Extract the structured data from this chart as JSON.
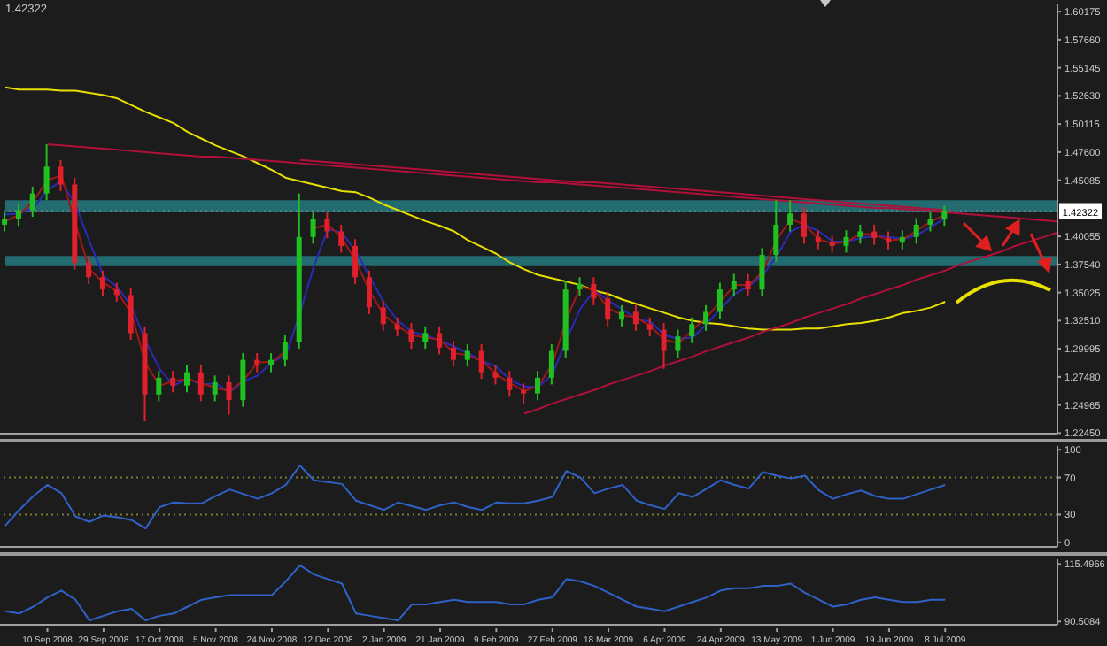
{
  "chart_data": [
    {
      "type": "candlestick",
      "annotations": [
        "1.42322"
      ],
      "categories": [
        null,
        null,
        null,
        null,
        null,
        null,
        null,
        null,
        null,
        null,
        null,
        null,
        null,
        null,
        null,
        null,
        null,
        null,
        null,
        null,
        null,
        null,
        null,
        null,
        null,
        null,
        null,
        null,
        null,
        null,
        null,
        null,
        null,
        null,
        null,
        null,
        null,
        null,
        null,
        null,
        null,
        null,
        null,
        null,
        null,
        null,
        null,
        null,
        null,
        null,
        null,
        null,
        null,
        null,
        null,
        null,
        null,
        null,
        null,
        null,
        null,
        null,
        null,
        null,
        null,
        null,
        null,
        null,
        null,
        null,
        null,
        null,
        null,
        null,
        null,
        null
      ],
      "series": [
        {
          "type": "line",
          "color": "#e8e000",
          "values": [
            1.534,
            1.532,
            1.532,
            1.532,
            1.531,
            1.531,
            1.529,
            1.527,
            1.524,
            1.518,
            1.512,
            1.507,
            1.502,
            1.494,
            1.488,
            1.482,
            1.477,
            1.472,
            1.466,
            1.46,
            1.453,
            1.45,
            1.447,
            1.444,
            1.441,
            1.44,
            1.435,
            1.429,
            1.424,
            1.419,
            1.414,
            1.41,
            1.405,
            1.397,
            1.391,
            1.385,
            1.377,
            1.371,
            1.366,
            1.363,
            1.36,
            1.357,
            1.352,
            1.349,
            1.344,
            1.34,
            1.336,
            1.332,
            1.328,
            1.325,
            1.323,
            1.322,
            1.32,
            1.318,
            1.317,
            1.317,
            1.317,
            1.318,
            1.318,
            1.32,
            1.322,
            1.323,
            1.325,
            1.328,
            1.332,
            1.334,
            1.337,
            1.342,
            null,
            null,
            null,
            null,
            null,
            null,
            null,
            null
          ]
        },
        {
          "type": "line",
          "color": "#2a2ab8",
          "values": [
            1.42,
            1.421,
            1.426,
            1.442,
            1.45,
            1.429,
            1.396,
            1.365,
            1.355,
            1.338,
            1.307,
            1.282,
            1.267,
            1.273,
            1.268,
            1.269,
            1.261,
            1.271,
            1.276,
            1.288,
            1.294,
            1.332,
            1.374,
            1.407,
            1.404,
            1.387,
            1.364,
            1.341,
            1.325,
            1.315,
            1.312,
            1.307,
            1.302,
            1.296,
            1.289,
            1.284,
            1.272,
            1.266,
            1.266,
            1.277,
            1.308,
            1.336,
            1.352,
            1.343,
            1.335,
            1.327,
            1.324,
            1.312,
            1.309,
            1.31,
            1.322,
            1.336,
            1.349,
            1.356,
            1.366,
            1.383,
            1.405,
            1.411,
            1.405,
            1.396,
            1.396,
            1.399,
            1.401,
            1.4,
            1.398,
            1.402,
            1.409,
            1.417,
            null,
            null,
            null,
            null,
            null,
            null,
            null,
            null
          ]
        },
        {
          "type": "line",
          "color": "#a01818",
          "values": [
            1.414,
            1.42,
            1.432,
            1.451,
            1.455,
            1.412,
            1.371,
            1.359,
            1.351,
            1.331,
            1.287,
            1.267,
            1.271,
            1.273,
            1.269,
            1.265,
            1.262,
            1.272,
            1.288,
            1.288,
            1.298,
            null,
            1.408,
            1.411,
            1.399,
            1.378,
            1.351,
            1.33,
            1.32,
            1.312,
            1.31,
            1.308,
            1.296,
            1.294,
            1.289,
            1.277,
            1.269,
            1.262,
            1.267,
            1.286,
            1.326,
            1.356,
            1.352,
            1.336,
            1.33,
            1.328,
            1.32,
            1.308,
            1.305,
            1.317,
            1.328,
            1.343,
            1.357,
            1.357,
            1.369,
            1.398,
            1.416,
            1.411,
            1.398,
            1.394,
            1.396,
            1.403,
            1.402,
            1.397,
            1.398,
            1.406,
            1.414,
            1.42,
            null,
            null,
            null,
            null,
            null,
            null,
            null,
            null
          ]
        },
        {
          "type": "line",
          "color": "#b0103a",
          "values": [
            null,
            null,
            null,
            1.483,
            1.482,
            1.481,
            1.48,
            1.479,
            1.478,
            1.477,
            1.476,
            1.475,
            1.474,
            1.473,
            1.472,
            1.472,
            1.471,
            1.47,
            1.469,
            1.468,
            1.467,
            1.466,
            1.465,
            1.464,
            1.463,
            1.462,
            1.461,
            1.46,
            1.459,
            1.458,
            1.457,
            1.456,
            1.455,
            1.454,
            1.453,
            1.452,
            1.451,
            1.45,
            1.449,
            1.449,
            1.448,
            1.447,
            1.446,
            1.445,
            1.444,
            1.443,
            1.442,
            1.441,
            1.44,
            1.439,
            1.438,
            1.437,
            1.436,
            1.435,
            1.434,
            1.433,
            1.432,
            1.431,
            1.43,
            1.429,
            1.428,
            1.427,
            1.426,
            1.426,
            1.425,
            1.424,
            1.423,
            1.422,
            1.421,
            1.42,
            1.419,
            1.418,
            1.417,
            1.416,
            1.415,
            1.414
          ]
        },
        {
          "type": "line",
          "color": "#b0103a",
          "values": [
            null,
            null,
            null,
            null,
            null,
            null,
            null,
            null,
            null,
            null,
            null,
            null,
            null,
            null,
            null,
            null,
            null,
            null,
            null,
            null,
            null,
            1.469,
            1.468,
            1.467,
            1.466,
            1.465,
            1.464,
            1.463,
            1.462,
            1.461,
            1.46,
            1.459,
            1.458,
            1.457,
            1.456,
            1.455,
            1.454,
            1.453,
            1.452,
            1.451,
            1.45,
            1.449,
            1.449,
            1.448,
            1.447,
            1.446,
            1.445,
            1.444,
            1.443,
            1.442,
            1.441,
            1.44,
            1.439,
            1.438,
            1.437,
            1.436,
            1.435,
            1.434,
            1.433,
            1.432,
            1.431,
            1.43,
            1.429,
            1.428,
            1.427,
            1.426,
            1.425,
            1.424,
            null,
            null,
            null,
            null,
            null,
            null,
            null,
            null
          ]
        },
        {
          "type": "line",
          "color": "#b0103a",
          "values": [
            null,
            null,
            null,
            null,
            null,
            null,
            null,
            null,
            null,
            null,
            null,
            null,
            null,
            null,
            null,
            null,
            null,
            null,
            null,
            null,
            null,
            null,
            null,
            null,
            null,
            null,
            null,
            null,
            null,
            null,
            null,
            null,
            null,
            null,
            null,
            null,
            null,
            1.242,
            1.246,
            1.251,
            1.255,
            1.259,
            1.263,
            1.268,
            1.272,
            1.276,
            1.28,
            1.285,
            1.289,
            1.293,
            1.298,
            1.302,
            1.306,
            1.31,
            1.315,
            1.319,
            1.323,
            1.328,
            1.332,
            1.336,
            1.34,
            1.345,
            1.349,
            1.353,
            1.357,
            1.362,
            1.366,
            1.37,
            1.375,
            1.379,
            1.383,
            1.387,
            1.392,
            1.396,
            1.4,
            1.404
          ]
        },
        {
          "ohlc": [
            [
              1.411,
              1.422,
              1.405,
              1.416
            ],
            [
              1.416,
              1.43,
              1.41,
              1.424
            ],
            [
              1.424,
              1.445,
              1.418,
              1.439
            ],
            [
              1.439,
              1.483,
              1.433,
              1.463
            ],
            [
              1.463,
              1.469,
              1.441,
              1.447
            ],
            [
              1.447,
              1.453,
              1.371,
              1.377
            ],
            [
              1.377,
              1.383,
              1.358,
              1.364
            ],
            [
              1.364,
              1.37,
              1.347,
              1.353
            ],
            [
              1.353,
              1.359,
              1.342,
              1.348
            ],
            [
              1.348,
              1.354,
              1.308,
              1.314
            ],
            [
              1.314,
              1.32,
              1.235,
              1.259
            ],
            [
              1.259,
              1.28,
              1.253,
              1.274
            ],
            [
              1.274,
              1.28,
              1.261,
              1.267
            ],
            [
              1.267,
              1.285,
              1.261,
              1.279
            ],
            [
              1.279,
              1.285,
              1.253,
              1.259
            ],
            [
              1.259,
              1.276,
              1.253,
              1.27
            ],
            [
              1.27,
              1.276,
              1.241,
              1.254
            ],
            [
              1.254,
              1.296,
              1.248,
              1.29
            ],
            [
              1.29,
              1.296,
              1.279,
              1.285
            ],
            [
              1.285,
              1.296,
              1.279,
              1.29
            ],
            [
              1.29,
              1.312,
              1.284,
              1.306
            ],
            [
              1.306,
              1.439,
              1.3,
              1.4
            ],
            [
              1.4,
              1.422,
              1.394,
              1.416
            ],
            [
              1.416,
              1.422,
              1.399,
              1.405
            ],
            [
              1.405,
              1.411,
              1.386,
              1.392
            ],
            [
              1.392,
              1.398,
              1.358,
              1.364
            ],
            [
              1.364,
              1.37,
              1.331,
              1.337
            ],
            [
              1.337,
              1.343,
              1.316,
              1.322
            ],
            [
              1.322,
              1.328,
              1.311,
              1.317
            ],
            [
              1.317,
              1.323,
              1.3,
              1.306
            ],
            [
              1.306,
              1.32,
              1.3,
              1.314
            ],
            [
              1.314,
              1.32,
              1.295,
              1.301
            ],
            [
              1.301,
              1.307,
              1.284,
              1.29
            ],
            [
              1.29,
              1.304,
              1.284,
              1.298
            ],
            [
              1.298,
              1.304,
              1.273,
              1.279
            ],
            [
              1.279,
              1.285,
              1.268,
              1.274
            ],
            [
              1.274,
              1.28,
              1.257,
              1.263
            ],
            [
              1.263,
              1.269,
              1.251,
              1.26
            ],
            [
              1.26,
              1.28,
              1.254,
              1.274
            ],
            [
              1.274,
              1.304,
              1.268,
              1.298
            ],
            [
              1.298,
              1.361,
              1.292,
              1.353
            ],
            [
              1.353,
              1.364,
              1.347,
              1.358
            ],
            [
              1.358,
              1.364,
              1.339,
              1.345
            ],
            [
              1.345,
              1.351,
              1.32,
              1.326
            ],
            [
              1.326,
              1.339,
              1.32,
              1.333
            ],
            [
              1.333,
              1.339,
              1.316,
              1.322
            ],
            [
              1.322,
              1.328,
              1.311,
              1.317
            ],
            [
              1.317,
              1.323,
              1.282,
              1.298
            ],
            [
              1.298,
              1.317,
              1.292,
              1.311
            ],
            [
              1.311,
              1.328,
              1.305,
              1.322
            ],
            [
              1.322,
              1.339,
              1.316,
              1.333
            ],
            [
              1.333,
              1.359,
              1.327,
              1.353
            ],
            [
              1.353,
              1.367,
              1.347,
              1.361
            ],
            [
              1.361,
              1.367,
              1.347,
              1.353
            ],
            [
              1.353,
              1.39,
              1.347,
              1.384
            ],
            [
              1.384,
              1.433,
              1.378,
              1.411
            ],
            [
              1.411,
              1.433,
              1.405,
              1.421
            ],
            [
              1.421,
              1.427,
              1.394,
              1.4
            ],
            [
              1.4,
              1.406,
              1.389,
              1.395
            ],
            [
              1.395,
              1.401,
              1.386,
              1.392
            ],
            [
              1.392,
              1.406,
              1.386,
              1.4
            ],
            [
              1.4,
              1.411,
              1.394,
              1.405
            ],
            [
              1.405,
              1.411,
              1.393,
              1.399
            ],
            [
              1.399,
              1.405,
              1.389,
              1.395
            ],
            [
              1.395,
              1.406,
              1.389,
              1.4
            ],
            [
              1.4,
              1.417,
              1.394,
              1.411
            ],
            [
              1.411,
              1.422,
              1.405,
              1.416
            ],
            [
              1.416,
              1.428,
              1.41,
              1.424
            ],
            null,
            null,
            null,
            null,
            null,
            null,
            null,
            null
          ],
          "colors": [
            "#1fc01f",
            "#1fc01f",
            "#1fc01f",
            "#1fc01f",
            "#e0202a",
            "#e0202a",
            "#e0202a",
            "#e0202a",
            "#e0202a",
            "#e0202a",
            "#e0202a",
            "#1fc01f",
            "#e0202a",
            "#1fc01f",
            "#e0202a",
            "#1fc01f",
            "#e0202a",
            "#1fc01f",
            "#e0202a",
            "#1fc01f",
            "#1fc01f",
            "#1fc01f",
            "#1fc01f",
            "#e0202a",
            "#e0202a",
            "#e0202a",
            "#e0202a",
            "#e0202a",
            "#e0202a",
            "#e0202a",
            "#1fc01f",
            "#e0202a",
            "#e0202a",
            "#1fc01f",
            "#e0202a",
            "#e0202a",
            "#e0202a",
            "#e0202a",
            "#1fc01f",
            "#1fc01f",
            "#1fc01f",
            "#1fc01f",
            "#e0202a",
            "#e0202a",
            "#1fc01f",
            "#e0202a",
            "#e0202a",
            "#e0202a",
            "#1fc01f",
            "#1fc01f",
            "#1fc01f",
            "#1fc01f",
            "#1fc01f",
            "#e0202a",
            "#1fc01f",
            "#1fc01f",
            "#1fc01f",
            "#e0202a",
            "#e0202a",
            "#e0202a",
            "#1fc01f",
            "#1fc01f",
            "#e0202a",
            "#e0202a",
            "#1fc01f",
            "#1fc01f",
            "#1fc01f",
            "#1fc01f",
            null,
            null,
            null,
            null,
            null,
            null,
            null,
            null
          ]
        }
      ],
      "ylim": [
        1.224,
        1.609
      ],
      "yticks": [
        {
          "value": 1.2245,
          "label": "1.22450"
        },
        1.24965,
        {
          "value": 1.2748,
          "label": "1.27480"
        },
        1.29995,
        {
          "value": 1.3251,
          "label": "1.32510"
        },
        1.35025,
        {
          "value": 1.3754,
          "label": "1.37540"
        },
        1.40055,
        1.45085,
        {
          "value": 1.476,
          "label": "1.47600"
        },
        1.50115,
        {
          "value": 1.5263,
          "label": "1.52630"
        },
        1.55145,
        {
          "value": 1.5766,
          "label": "1.57660"
        },
        1.60175
      ],
      "bands": [
        {
          "axis": "y",
          "from": 1.422,
          "to": 1.433,
          "color": "#23797f"
        },
        {
          "axis": "y",
          "from": 1.374,
          "to": 1.383,
          "color": "#23797f"
        }
      ],
      "ref_lines": [
        {
          "axis": "y",
          "value": 1.42322,
          "label": "1.42322",
          "color": "#8a8a8a",
          "line_style": "dotted"
        }
      ],
      "tick_labels": "y"
    },
    {
      "type": "line",
      "categories": [
        null,
        null,
        null,
        null,
        null,
        null,
        null,
        null,
        null,
        null,
        null,
        null,
        null,
        null,
        null,
        null,
        null,
        null,
        null,
        null,
        null,
        null,
        null,
        null,
        null,
        null,
        null,
        null,
        null,
        null,
        null,
        null,
        null,
        null,
        null,
        null,
        null,
        null,
        null,
        null,
        null,
        null,
        null,
        null,
        null,
        null,
        null,
        null,
        null,
        null,
        null,
        null,
        null,
        null,
        null,
        null,
        null,
        null,
        null,
        null,
        null,
        null,
        null,
        null,
        null,
        null,
        null,
        null,
        null,
        null,
        null,
        null,
        null,
        null,
        null,
        null
      ],
      "series": [
        {
          "color": "#2f62c8",
          "values": [
            18,
            35,
            50,
            62,
            53,
            28,
            22,
            29,
            27,
            24,
            15,
            38,
            43,
            42,
            42,
            50,
            57,
            52,
            47,
            53,
            62,
            83,
            67,
            65,
            63,
            45,
            40,
            35,
            43,
            39,
            35,
            40,
            43,
            38,
            35,
            43,
            42,
            42,
            45,
            49,
            77,
            70,
            53,
            58,
            62,
            45,
            40,
            36,
            53,
            49,
            58,
            67,
            62,
            58,
            76,
            72,
            69,
            72,
            56,
            47,
            52,
            56,
            50,
            47,
            47,
            52,
            57,
            62,
            null,
            null,
            null,
            null,
            null,
            null,
            null,
            null
          ]
        }
      ],
      "ylim": [
        -5,
        104
      ],
      "yticks": [
        0,
        30,
        70,
        100
      ],
      "ref_lines": [
        {
          "axis": "y",
          "value": 70,
          "color": "#7a7a30",
          "line_style": "dotted"
        },
        {
          "axis": "y",
          "value": 30,
          "color": "#7a7a30",
          "line_style": "dotted"
        }
      ],
      "tick_labels": "y"
    },
    {
      "type": "line",
      "categories": [
        null,
        null,
        null,
        "10 Sep 2008",
        null,
        null,
        null,
        "29 Sep 2008",
        null,
        null,
        null,
        "17 Oct 2008",
        null,
        null,
        null,
        "5 Nov 2008",
        null,
        null,
        null,
        "24 Nov 2008",
        null,
        null,
        null,
        "12 Dec 2008",
        null,
        null,
        null,
        "2 Jan 2009",
        null,
        null,
        null,
        "21 Jan 2009",
        null,
        null,
        null,
        "9 Feb 2009",
        null,
        null,
        null,
        "27 Feb 2009",
        null,
        null,
        null,
        "18 Mar 2009",
        null,
        null,
        null,
        "6 Apr 2009",
        null,
        null,
        null,
        "24 Apr 2009",
        null,
        null,
        null,
        "13 May 2009",
        null,
        null,
        null,
        "1 Jun 2009",
        null,
        null,
        null,
        "19 Jun 2009",
        null,
        null,
        null,
        "8 Jul 2009",
        null,
        null,
        null,
        null,
        null,
        null,
        null,
        null
      ],
      "series": [
        {
          "color": "#2f62c8",
          "values": [
            95,
            94,
            97,
            101,
            104,
            100,
            91,
            93,
            95,
            96,
            91,
            93,
            94,
            97,
            100,
            101,
            102,
            102,
            102,
            102,
            108,
            115,
            111,
            109,
            107,
            94,
            93,
            92,
            91,
            98,
            98,
            99,
            100,
            99,
            99,
            99,
            98,
            98,
            100,
            101,
            109,
            108,
            106,
            103,
            100,
            97,
            96,
            95,
            97,
            99,
            101,
            104,
            105,
            105,
            106,
            106,
            107,
            103,
            100,
            97,
            98,
            100,
            101,
            100,
            99,
            99,
            100,
            100,
            null,
            null,
            null,
            null,
            null,
            null,
            null,
            null
          ]
        }
      ],
      "ylim": [
        89.1,
        117.6
      ],
      "yticks": [
        90.5084,
        115.4966
      ]
    }
  ]
}
